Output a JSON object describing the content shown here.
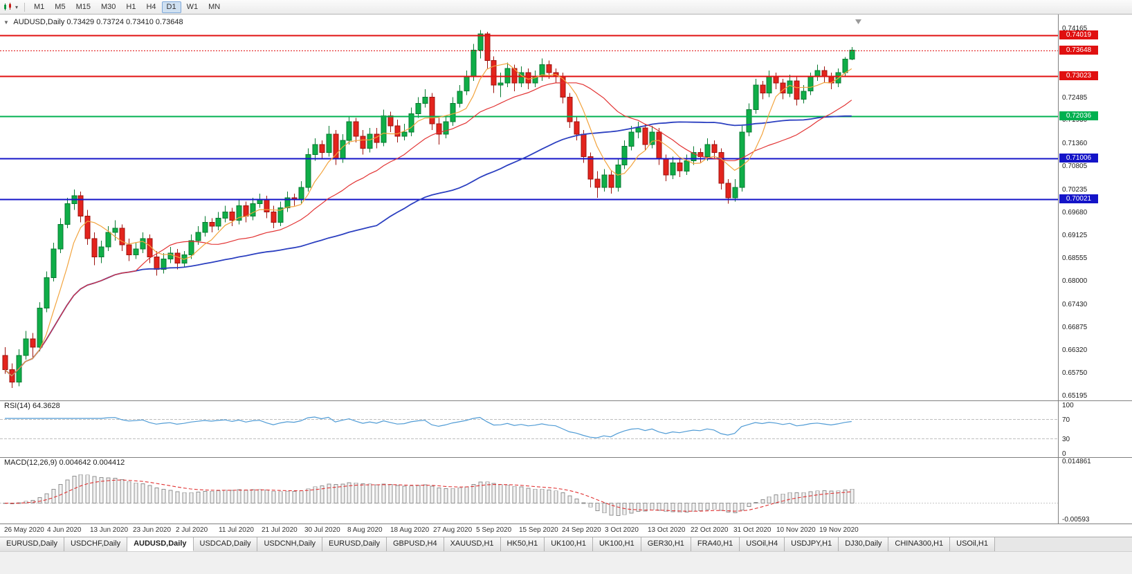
{
  "toolbar": {
    "chart_icon": "candlestick-chart",
    "dropdown_glyph": "▾",
    "timeframes": [
      "M1",
      "M5",
      "M15",
      "M30",
      "H1",
      "H4",
      "D1",
      "W1",
      "MN"
    ],
    "active_timeframe": "D1"
  },
  "chart": {
    "collapse_glyph": "▼",
    "symbol": "AUDUSD,Daily",
    "ohlc_text": "0.73429 0.73724 0.73410 0.73648",
    "accent_up": "#0fae48",
    "accent_up_border": "#077a31",
    "accent_down": "#e3241d",
    "accent_down_border": "#9e120d"
  },
  "chart_data": {
    "type": "candlestick",
    "symbol": "AUDUSD",
    "timeframe": "Daily",
    "title": "AUDUSD,Daily 0.73429 0.73724 0.73410 0.73648",
    "ylim": [
      0.651,
      0.7452
    ],
    "grid": false,
    "price_ticks": [
      "0.74165",
      "0.72485",
      "0.71930",
      "0.71360",
      "0.70805",
      "0.70235",
      "0.69680",
      "0.69125",
      "0.68555",
      "0.68000",
      "0.67430",
      "0.66875",
      "0.66320",
      "0.65750",
      "0.65195"
    ],
    "x_labels": [
      "26 May 2020",
      "4 Jun 2020",
      "13 Jun 2020",
      "23 Jun 2020",
      "2 Jul 2020",
      "11 Jul 2020",
      "21 Jul 2020",
      "30 Jul 2020",
      "8 Aug 2020",
      "18 Aug 2020",
      "27 Aug 2020",
      "5 Sep 2020",
      "15 Sep 2020",
      "24 Sep 2020",
      "3 Oct 2020",
      "13 Oct 2020",
      "22 Oct 2020",
      "31 Oct 2020",
      "10 Nov 2020",
      "19 Nov 2020"
    ],
    "hlines": [
      {
        "label": "0.74019",
        "price": 0.74019,
        "color": "#e01010",
        "style": "solid",
        "width": 2,
        "role": "resistance"
      },
      {
        "label": "0.73648",
        "price": 0.73648,
        "color": "#e01010",
        "style": "dotted",
        "width": 1,
        "role": "bid"
      },
      {
        "label": "0.73023",
        "price": 0.73023,
        "color": "#e01010",
        "style": "solid",
        "width": 2,
        "role": "resistance"
      },
      {
        "label": "0.72036",
        "price": 0.72036,
        "color": "#00b050",
        "style": "solid",
        "width": 2,
        "role": "support"
      },
      {
        "label": "0.71006",
        "price": 0.71006,
        "color": "#1414c8",
        "style": "solid",
        "width": 2,
        "role": "support"
      },
      {
        "label": "0.70021",
        "price": 0.70021,
        "color": "#1414c8",
        "style": "solid",
        "width": 2,
        "role": "support"
      }
    ],
    "moving_averages": [
      {
        "name": "slow",
        "period": 55,
        "color": "#2b3fc0"
      },
      {
        "name": "medium",
        "period": 20,
        "color": "#e23232"
      },
      {
        "name": "fast",
        "period": 6,
        "color": "#f2a33c"
      }
    ],
    "candles": [
      [
        0.662,
        0.664,
        0.6575,
        0.6585
      ],
      [
        0.6585,
        0.66,
        0.654,
        0.6555
      ],
      [
        0.6555,
        0.6635,
        0.6545,
        0.662
      ],
      [
        0.662,
        0.668,
        0.661,
        0.666
      ],
      [
        0.666,
        0.6675,
        0.6615,
        0.664
      ],
      [
        0.664,
        0.675,
        0.663,
        0.6735
      ],
      [
        0.6735,
        0.6825,
        0.6725,
        0.681
      ],
      [
        0.681,
        0.6895,
        0.68,
        0.688
      ],
      [
        0.688,
        0.6955,
        0.687,
        0.694
      ],
      [
        0.694,
        0.7005,
        0.693,
        0.699
      ],
      [
        0.699,
        0.7025,
        0.6975,
        0.701
      ],
      [
        0.701,
        0.702,
        0.6945,
        0.696
      ],
      [
        0.696,
        0.6975,
        0.689,
        0.6905
      ],
      [
        0.6905,
        0.692,
        0.684,
        0.686
      ],
      [
        0.686,
        0.69,
        0.6845,
        0.6885
      ],
      [
        0.6885,
        0.6935,
        0.6875,
        0.692
      ],
      [
        0.692,
        0.695,
        0.69,
        0.693
      ],
      [
        0.693,
        0.694,
        0.6875,
        0.689
      ],
      [
        0.689,
        0.6905,
        0.685,
        0.6865
      ],
      [
        0.6865,
        0.6895,
        0.6855,
        0.688
      ],
      [
        0.688,
        0.692,
        0.687,
        0.6905
      ],
      [
        0.6905,
        0.6915,
        0.6845,
        0.686
      ],
      [
        0.686,
        0.6875,
        0.6815,
        0.683
      ],
      [
        0.683,
        0.687,
        0.682,
        0.6855
      ],
      [
        0.6855,
        0.6885,
        0.6845,
        0.687
      ],
      [
        0.687,
        0.688,
        0.683,
        0.6845
      ],
      [
        0.6845,
        0.6875,
        0.6835,
        0.6865
      ],
      [
        0.6865,
        0.6915,
        0.6855,
        0.69
      ],
      [
        0.69,
        0.6935,
        0.689,
        0.692
      ],
      [
        0.692,
        0.696,
        0.691,
        0.6945
      ],
      [
        0.6945,
        0.6955,
        0.692,
        0.6935
      ],
      [
        0.6935,
        0.697,
        0.6925,
        0.6955
      ],
      [
        0.6955,
        0.6985,
        0.6945,
        0.697
      ],
      [
        0.697,
        0.698,
        0.6935,
        0.695
      ],
      [
        0.695,
        0.7,
        0.694,
        0.6985
      ],
      [
        0.6985,
        0.6995,
        0.6945,
        0.696
      ],
      [
        0.696,
        0.7005,
        0.695,
        0.699
      ],
      [
        0.699,
        0.7015,
        0.698,
        0.7
      ],
      [
        0.7,
        0.701,
        0.6955,
        0.697
      ],
      [
        0.697,
        0.6985,
        0.693,
        0.6945
      ],
      [
        0.6945,
        0.6995,
        0.6935,
        0.698
      ],
      [
        0.698,
        0.702,
        0.697,
        0.7005
      ],
      [
        0.7005,
        0.7015,
        0.6985,
        0.7
      ],
      [
        0.7,
        0.7045,
        0.699,
        0.703
      ],
      [
        0.703,
        0.7125,
        0.702,
        0.711
      ],
      [
        0.711,
        0.715,
        0.7095,
        0.7135
      ],
      [
        0.7135,
        0.7145,
        0.71,
        0.7115
      ],
      [
        0.7115,
        0.718,
        0.7105,
        0.716
      ],
      [
        0.716,
        0.717,
        0.7085,
        0.71
      ],
      [
        0.71,
        0.716,
        0.709,
        0.7145
      ],
      [
        0.7145,
        0.7205,
        0.7135,
        0.719
      ],
      [
        0.719,
        0.72,
        0.714,
        0.7155
      ],
      [
        0.7155,
        0.717,
        0.711,
        0.7125
      ],
      [
        0.7125,
        0.7175,
        0.7115,
        0.716
      ],
      [
        0.716,
        0.7175,
        0.7125,
        0.714
      ],
      [
        0.714,
        0.722,
        0.713,
        0.7205
      ],
      [
        0.7205,
        0.7215,
        0.7165,
        0.718
      ],
      [
        0.718,
        0.7195,
        0.714,
        0.7155
      ],
      [
        0.7155,
        0.7185,
        0.7145,
        0.7165
      ],
      [
        0.7165,
        0.7225,
        0.7155,
        0.721
      ],
      [
        0.721,
        0.725,
        0.72,
        0.7235
      ],
      [
        0.7235,
        0.727,
        0.7225,
        0.725
      ],
      [
        0.725,
        0.726,
        0.717,
        0.7185
      ],
      [
        0.7185,
        0.72,
        0.7135,
        0.716
      ],
      [
        0.716,
        0.7205,
        0.715,
        0.719
      ],
      [
        0.719,
        0.725,
        0.718,
        0.7235
      ],
      [
        0.7235,
        0.728,
        0.7225,
        0.7265
      ],
      [
        0.7265,
        0.7315,
        0.7255,
        0.73
      ],
      [
        0.73,
        0.738,
        0.729,
        0.7365
      ],
      [
        0.7365,
        0.7414,
        0.7345,
        0.7405
      ],
      [
        0.7405,
        0.741,
        0.732,
        0.734
      ],
      [
        0.734,
        0.735,
        0.726,
        0.728
      ],
      [
        0.728,
        0.731,
        0.725,
        0.7285
      ],
      [
        0.7285,
        0.7335,
        0.7275,
        0.732
      ],
      [
        0.732,
        0.733,
        0.7265,
        0.7285
      ],
      [
        0.7285,
        0.7325,
        0.7275,
        0.731
      ],
      [
        0.731,
        0.732,
        0.727,
        0.7285
      ],
      [
        0.7285,
        0.7315,
        0.7275,
        0.73
      ],
      [
        0.73,
        0.7345,
        0.729,
        0.733
      ],
      [
        0.733,
        0.734,
        0.7295,
        0.731
      ],
      [
        0.731,
        0.732,
        0.7285,
        0.73
      ],
      [
        0.73,
        0.731,
        0.7235,
        0.725
      ],
      [
        0.725,
        0.726,
        0.7175,
        0.719
      ],
      [
        0.719,
        0.7205,
        0.7145,
        0.716
      ],
      [
        0.716,
        0.717,
        0.709,
        0.7105
      ],
      [
        0.7105,
        0.7115,
        0.703,
        0.705
      ],
      [
        0.705,
        0.707,
        0.7005,
        0.703
      ],
      [
        0.703,
        0.7075,
        0.702,
        0.706
      ],
      [
        0.706,
        0.707,
        0.7015,
        0.703
      ],
      [
        0.703,
        0.71,
        0.702,
        0.7085
      ],
      [
        0.7085,
        0.7145,
        0.7075,
        0.713
      ],
      [
        0.713,
        0.718,
        0.712,
        0.7165
      ],
      [
        0.7165,
        0.719,
        0.715,
        0.7175
      ],
      [
        0.7175,
        0.7185,
        0.712,
        0.7135
      ],
      [
        0.7135,
        0.718,
        0.7125,
        0.7165
      ],
      [
        0.7165,
        0.7175,
        0.7085,
        0.71
      ],
      [
        0.71,
        0.711,
        0.7045,
        0.706
      ],
      [
        0.706,
        0.7105,
        0.705,
        0.709
      ],
      [
        0.709,
        0.71,
        0.7055,
        0.707
      ],
      [
        0.707,
        0.711,
        0.706,
        0.7095
      ],
      [
        0.7095,
        0.713,
        0.7085,
        0.7115
      ],
      [
        0.7115,
        0.7125,
        0.709,
        0.7105
      ],
      [
        0.7105,
        0.715,
        0.7095,
        0.7135
      ],
      [
        0.7135,
        0.7145,
        0.71,
        0.7115
      ],
      [
        0.7115,
        0.7125,
        0.7025,
        0.704
      ],
      [
        0.704,
        0.705,
        0.699,
        0.7005
      ],
      [
        0.7005,
        0.705,
        0.6995,
        0.703
      ],
      [
        0.703,
        0.718,
        0.702,
        0.7165
      ],
      [
        0.7165,
        0.7235,
        0.7155,
        0.722
      ],
      [
        0.722,
        0.7295,
        0.721,
        0.728
      ],
      [
        0.728,
        0.729,
        0.7245,
        0.726
      ],
      [
        0.726,
        0.7315,
        0.725,
        0.73
      ],
      [
        0.73,
        0.731,
        0.727,
        0.7285
      ],
      [
        0.7285,
        0.7295,
        0.7245,
        0.726
      ],
      [
        0.726,
        0.7305,
        0.725,
        0.729
      ],
      [
        0.729,
        0.73,
        0.723,
        0.7245
      ],
      [
        0.7245,
        0.728,
        0.7235,
        0.7265
      ],
      [
        0.7265,
        0.731,
        0.7255,
        0.73
      ],
      [
        0.73,
        0.733,
        0.729,
        0.7315
      ],
      [
        0.7315,
        0.7325,
        0.7285,
        0.73
      ],
      [
        0.73,
        0.731,
        0.727,
        0.7285
      ],
      [
        0.7285,
        0.732,
        0.7275,
        0.731
      ],
      [
        0.731,
        0.7348,
        0.73,
        0.7343
      ],
      [
        0.73429,
        0.73724,
        0.7341,
        0.73648
      ]
    ]
  },
  "rsi_panel": {
    "name": "RSI(14)",
    "value": "64.3628",
    "period": 14,
    "line_color": "#4f9bd5",
    "levels": [
      "100",
      "70",
      "30",
      "0"
    ],
    "upper_level": 70,
    "lower_level": 30
  },
  "macd_panel": {
    "name": "MACD(12,26,9)",
    "values": "0.004642 0.004412",
    "fast": 12,
    "slow": 26,
    "signal": 9,
    "scale_max": "0.014861",
    "scale_min": "-0.00593",
    "histogram_color": "#8f8f8f",
    "signal_color": "#e03131"
  },
  "tabbar": {
    "active_index": 2,
    "tabs": [
      "EURUSD,Daily",
      "USDCHF,Daily",
      "AUDUSD,Daily",
      "USDCAD,Daily",
      "USDCNH,Daily",
      "EURUSD,Daily",
      "GBPUSD,H4",
      "XAUUSD,H1",
      "HK50,H1",
      "UK100,H1",
      "UK100,H1",
      "GER30,H1",
      "FRA40,H1",
      "USOil,H4",
      "USDJPY,H1",
      "DJ30,Daily",
      "CHINA300,H1",
      "USOil,H1"
    ]
  }
}
